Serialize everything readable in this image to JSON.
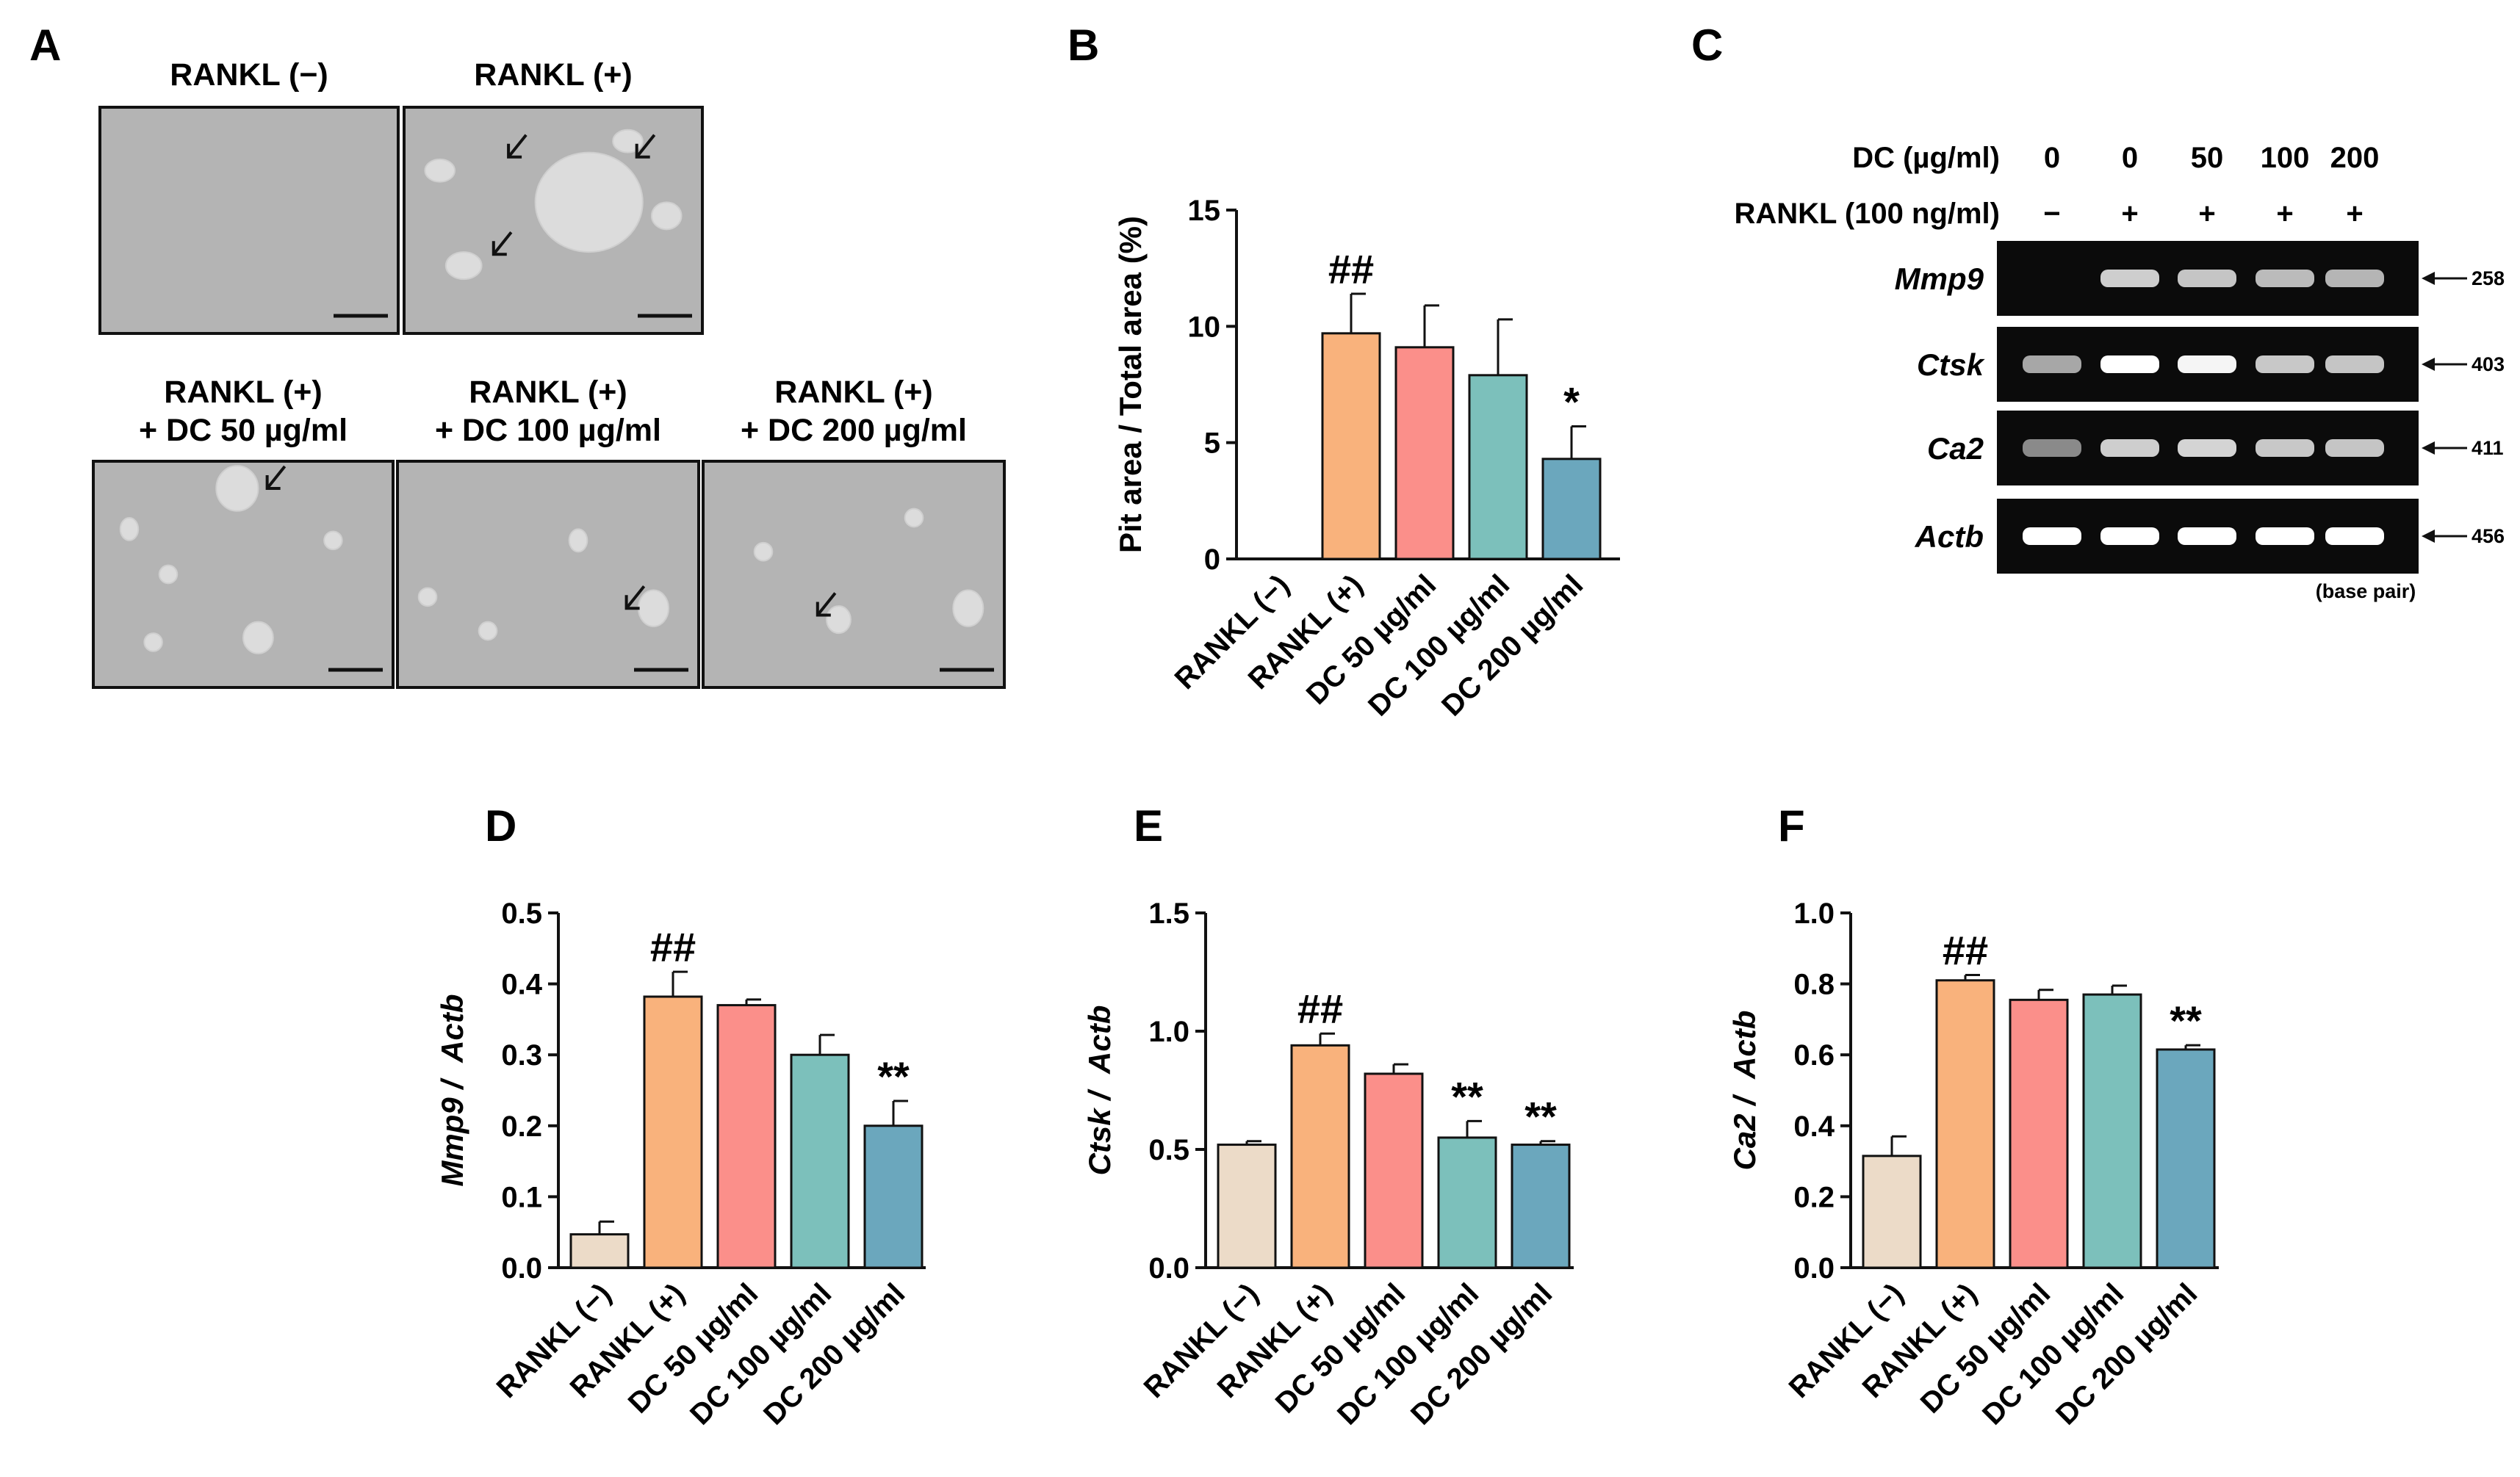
{
  "panel_a": {
    "letter": "A",
    "images": [
      {
        "title": [
          "RANKL (−)"
        ],
        "pits": []
      },
      {
        "title": [
          "RANKL (+)"
        ],
        "pits": [
          [
            0.62,
            0.42,
            0.18,
            0.22
          ],
          [
            0.12,
            0.28,
            0.05,
            0.05
          ],
          [
            0.2,
            0.7,
            0.06,
            0.06
          ],
          [
            0.75,
            0.15,
            0.05,
            0.05
          ],
          [
            0.88,
            0.48,
            0.05,
            0.06
          ]
        ],
        "arrows": [
          [
            0.35,
            0.22
          ],
          [
            0.78,
            0.22
          ],
          [
            0.3,
            0.65
          ]
        ]
      },
      {
        "title": [
          "RANKL (+)",
          "+ DC 50 µg/ml"
        ],
        "pits": [
          [
            0.48,
            0.12,
            0.07,
            0.1
          ],
          [
            0.25,
            0.5,
            0.03,
            0.04
          ],
          [
            0.55,
            0.78,
            0.05,
            0.07
          ],
          [
            0.2,
            0.8,
            0.03,
            0.04
          ],
          [
            0.8,
            0.35,
            0.03,
            0.04
          ],
          [
            0.12,
            0.3,
            0.03,
            0.05
          ]
        ],
        "arrows": [
          [
            0.58,
            0.12
          ]
        ]
      },
      {
        "title": [
          "RANKL (+)",
          "+ DC 100 µg/ml"
        ],
        "pits": [
          [
            0.85,
            0.65,
            0.05,
            0.08
          ],
          [
            0.6,
            0.35,
            0.03,
            0.05
          ],
          [
            0.3,
            0.75,
            0.03,
            0.04
          ],
          [
            0.1,
            0.6,
            0.03,
            0.04
          ]
        ],
        "arrows": [
          [
            0.76,
            0.65
          ]
        ]
      },
      {
        "title": [
          "RANKL (+)",
          "+ DC 200 µg/ml"
        ],
        "pits": [
          [
            0.45,
            0.7,
            0.04,
            0.06
          ],
          [
            0.88,
            0.65,
            0.05,
            0.08
          ],
          [
            0.2,
            0.4,
            0.03,
            0.04
          ],
          [
            0.7,
            0.25,
            0.03,
            0.04
          ]
        ],
        "arrows": [
          [
            0.38,
            0.68
          ]
        ]
      }
    ]
  },
  "gel": {
    "letter": "C",
    "dc_label": "DC (µg/ml)",
    "rankl_label": "RANKL (100 ng/ml)",
    "dc_values": [
      "0",
      "0",
      "50",
      "100",
      "200"
    ],
    "rankl_values": [
      "−",
      "+",
      "+",
      "+",
      "+"
    ],
    "genes": [
      "Mmp9",
      "Ctsk",
      "Ca2",
      "Actb"
    ],
    "bp": [
      "258",
      "403",
      "411",
      "456"
    ],
    "bp_note": "(base pair)",
    "band_intensity": [
      [
        0,
        0.75,
        0.7,
        0.65,
        0.62
      ],
      [
        0.55,
        1,
        0.95,
        0.72,
        0.7
      ],
      [
        0.4,
        0.75,
        0.78,
        0.72,
        0.7
      ],
      [
        1,
        1,
        1,
        1,
        1
      ]
    ]
  },
  "colors": {
    "bar": [
      "#ecdbc8",
      "#f9b27c",
      "#fb8f8a",
      "#7cc0bb",
      "#6ba7bd"
    ],
    "gel_bg": "#0b0b0b",
    "image_bg": "#b4b4b4"
  },
  "chart_data": [
    {
      "panel": "B",
      "type": "bar",
      "categories": [
        "RANKL (−)",
        "RANKL (+)",
        "DC 50 µg/ml",
        "DC 100 µg/ml",
        "DC 200 µg/ml"
      ],
      "values": [
        0,
        9.7,
        9.1,
        7.9,
        4.3
      ],
      "errors": [
        0,
        1.7,
        1.8,
        2.4,
        1.4
      ],
      "annotations": [
        "",
        "##",
        "",
        "",
        "*"
      ],
      "ylabel": [
        "Pit area / Total area (%)"
      ],
      "ylim": [
        0,
        15
      ],
      "yticks": [
        0,
        5,
        10,
        15
      ],
      "ytick_labels": [
        "0",
        "5",
        "10",
        "15"
      ]
    },
    {
      "panel": "D",
      "type": "bar",
      "categories": [
        "RANKL (−)",
        "RANKL (+)",
        "DC 50 µg/ml",
        "DC 100 µg/ml",
        "DC 200 µg/ml"
      ],
      "values": [
        0.047,
        0.382,
        0.37,
        0.3,
        0.2
      ],
      "errors": [
        0.018,
        0.035,
        0.008,
        0.028,
        0.035
      ],
      "annotations": [
        "",
        "##",
        "",
        "",
        "**"
      ],
      "ylabel": [
        "Mmp9 /",
        "Actb"
      ],
      "ylim": [
        0,
        0.5
      ],
      "yticks": [
        0,
        0.1,
        0.2,
        0.3,
        0.4,
        0.5
      ],
      "ytick_labels": [
        "0.0",
        "0.1",
        "0.2",
        "0.3",
        "0.4",
        "0.5"
      ]
    },
    {
      "panel": "E",
      "type": "bar",
      "categories": [
        "RANKL (−)",
        "RANKL (+)",
        "DC 50 µg/ml",
        "DC 100 µg/ml",
        "DC 200 µg/ml"
      ],
      "values": [
        0.52,
        0.94,
        0.82,
        0.55,
        0.52
      ],
      "errors": [
        0.015,
        0.05,
        0.04,
        0.07,
        0.015
      ],
      "annotations": [
        "",
        "##",
        "",
        "**",
        "**"
      ],
      "ylabel": [
        "Ctsk /",
        "Actb"
      ],
      "ylim": [
        0,
        1.5
      ],
      "yticks": [
        0,
        0.5,
        1.0,
        1.5
      ],
      "ytick_labels": [
        "0.0",
        "0.5",
        "1.0",
        "1.5"
      ]
    },
    {
      "panel": "F",
      "type": "bar",
      "categories": [
        "RANKL (−)",
        "RANKL (+)",
        "DC 50 µg/ml",
        "DC 100 µg/ml",
        "DC 200 µg/ml"
      ],
      "values": [
        0.315,
        0.81,
        0.755,
        0.77,
        0.615
      ],
      "errors": [
        0.055,
        0.015,
        0.028,
        0.025,
        0.012
      ],
      "annotations": [
        "",
        "##",
        "",
        "",
        "**"
      ],
      "ylabel": [
        "Ca2 /",
        "Actb"
      ],
      "ylim": [
        0,
        1.0
      ],
      "yticks": [
        0,
        0.2,
        0.4,
        0.6,
        0.8,
        1.0
      ],
      "ytick_labels": [
        "0.0",
        "0.2",
        "0.4",
        "0.6",
        "0.8",
        "1.0"
      ]
    }
  ]
}
